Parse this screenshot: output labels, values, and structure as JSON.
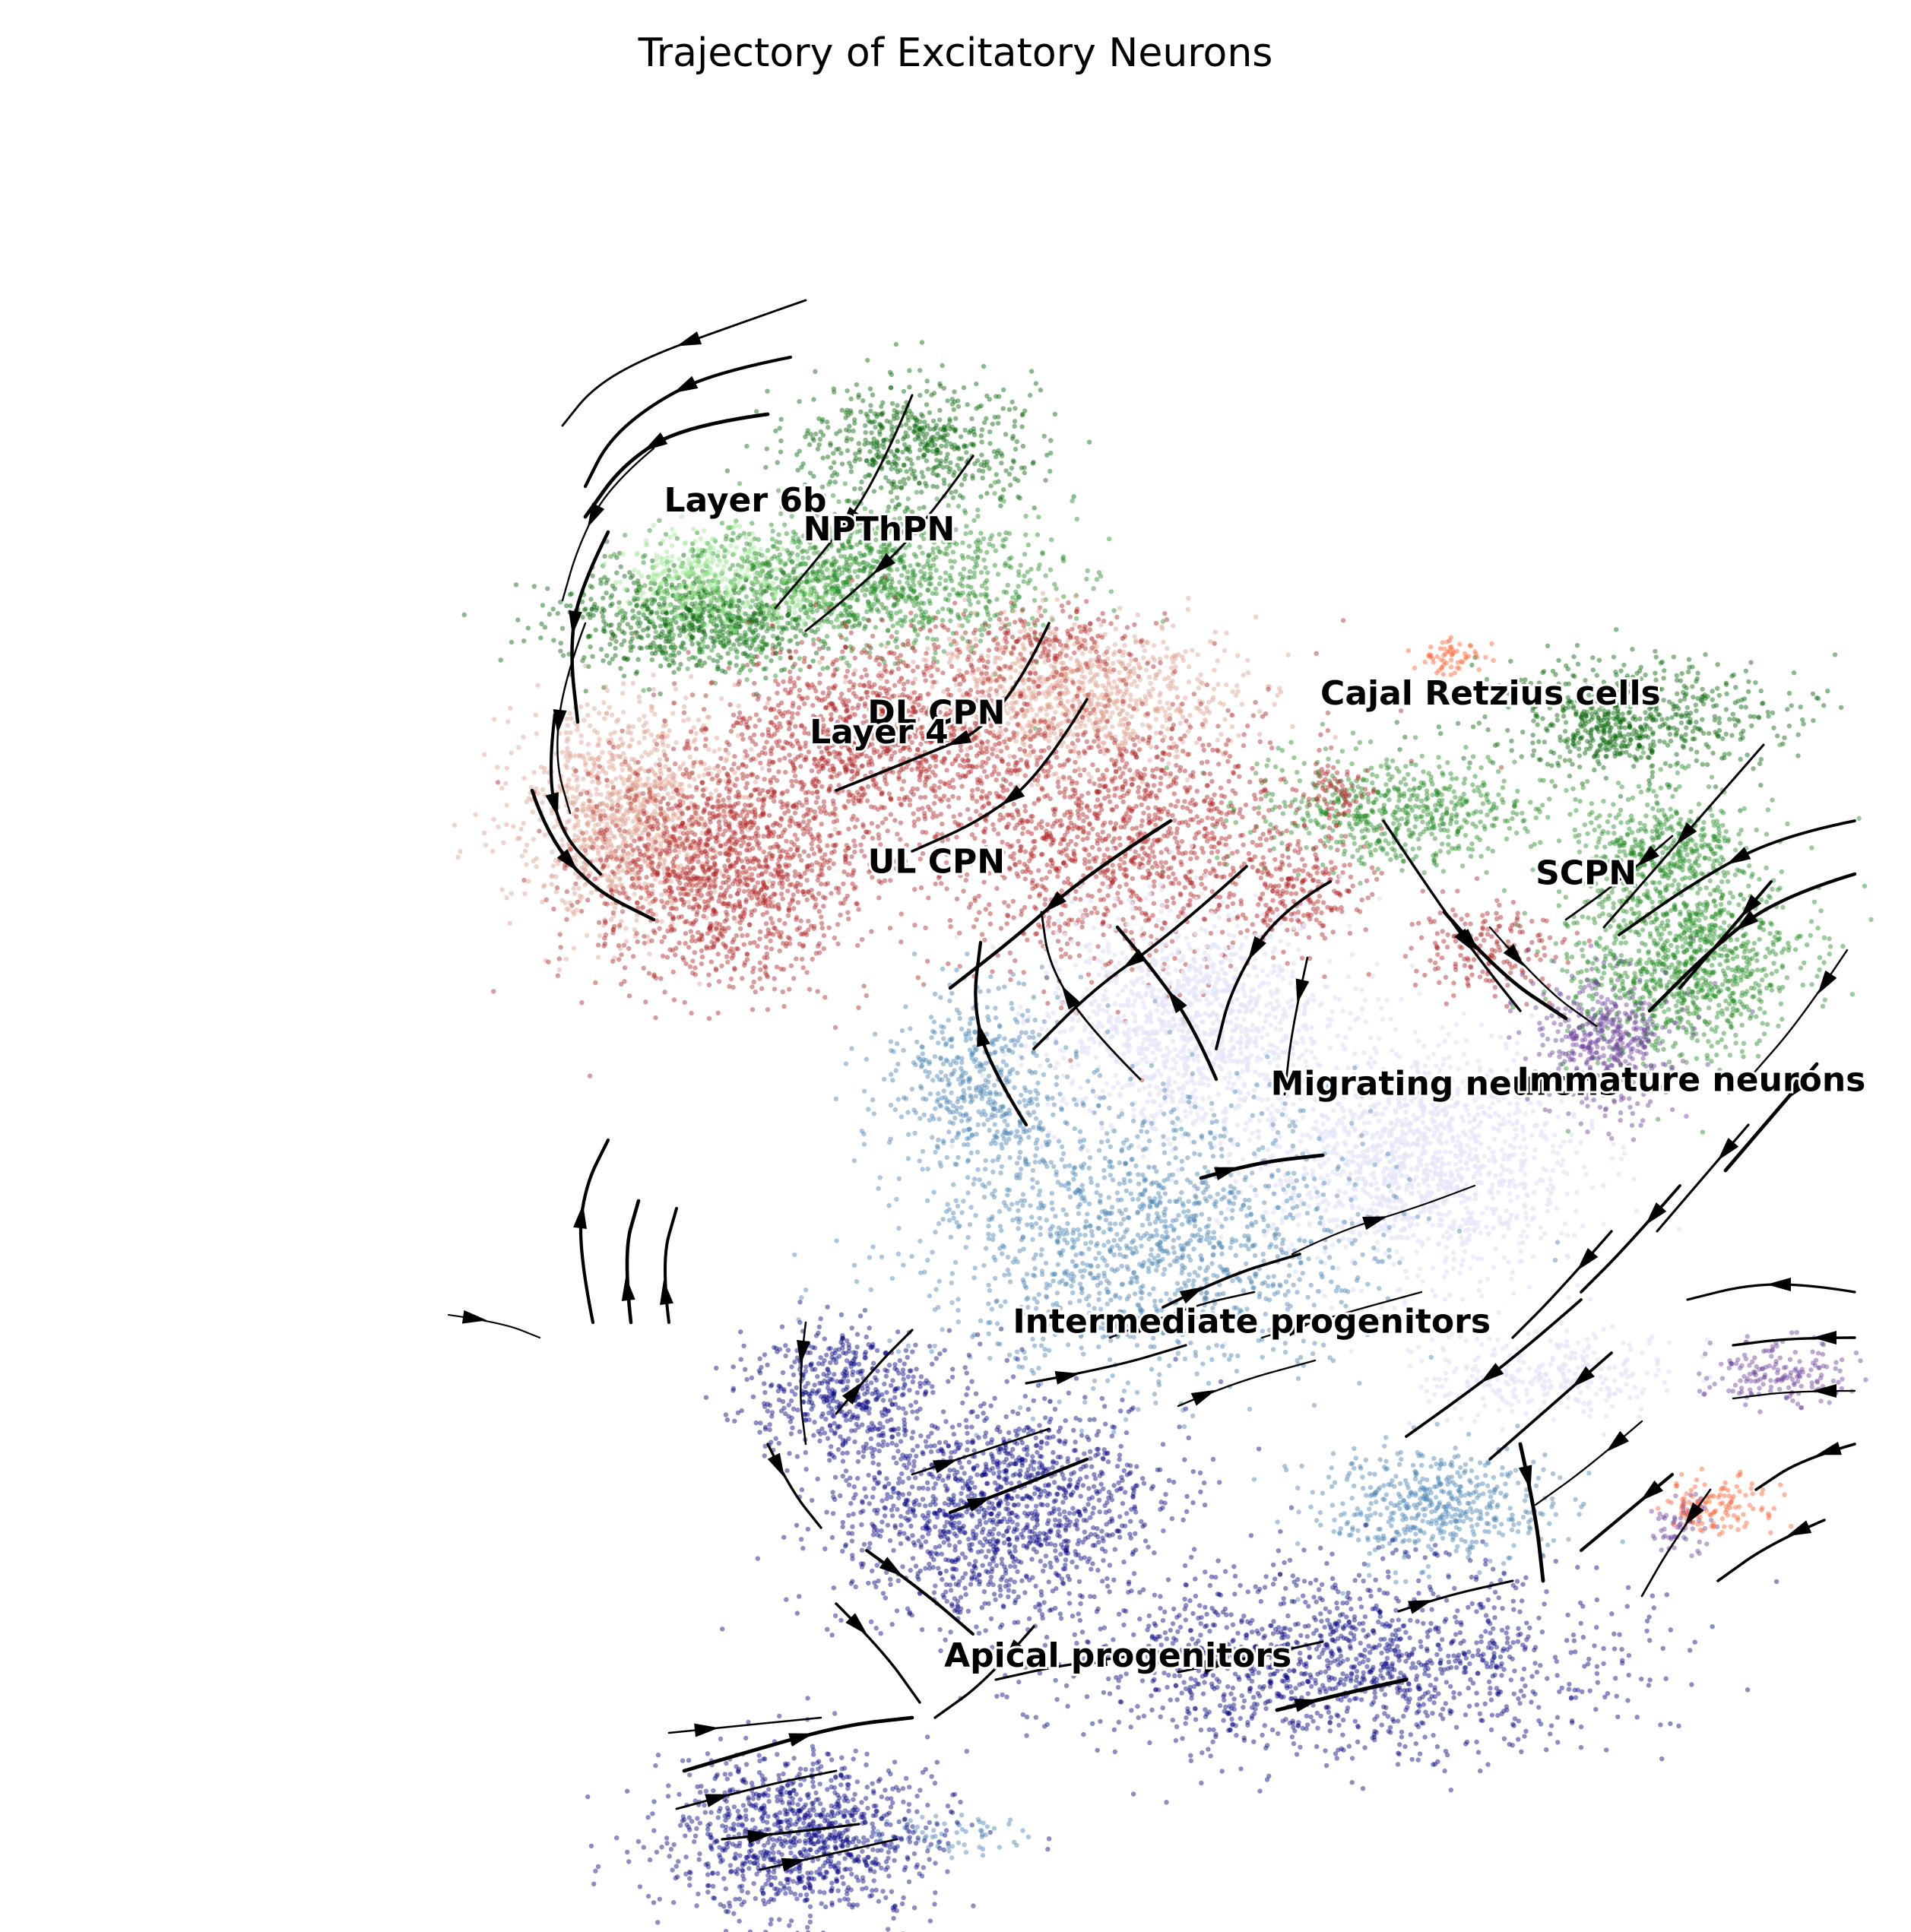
{
  "chart_data": {
    "type": "scatter",
    "title": "Trajectory of Excitatory Neurons",
    "xlabel": "",
    "ylabel": "",
    "axes_visible": false,
    "grid": false,
    "overlay": "velocity streamlines with arrowheads",
    "series": [
      {
        "label": "Layer 6b",
        "color": "#006400",
        "blobs": [
          [
            0.36,
            0.32,
            0.06,
            0.022,
            1.0
          ],
          [
            0.48,
            0.23,
            0.055,
            0.026,
            0.8
          ],
          [
            0.86,
            0.37,
            0.07,
            0.025,
            0.6
          ],
          [
            0.84,
            0.38,
            0.02,
            0.012,
            1.0
          ]
        ]
      },
      {
        "label": "NPThPN",
        "color": "#228B22",
        "blobs": [
          [
            0.45,
            0.3,
            0.08,
            0.03,
            1.0
          ],
          [
            0.38,
            0.33,
            0.03,
            0.015,
            0.5
          ],
          [
            0.73,
            0.42,
            0.06,
            0.025,
            0.8
          ],
          [
            0.88,
            0.5,
            0.05,
            0.04,
            1.0
          ],
          [
            0.87,
            0.44,
            0.04,
            0.03,
            0.8
          ]
        ]
      },
      {
        "label": "Layer 4",
        "color": "#98e68f",
        "blobs": [
          [
            0.37,
            0.3,
            0.035,
            0.02,
            1.0
          ],
          [
            0.42,
            0.31,
            0.02,
            0.012,
            0.5
          ]
        ]
      },
      {
        "label": "DL CPN",
        "color": "#dd9f8c",
        "blobs": [
          [
            0.33,
            0.42,
            0.05,
            0.045,
            1.0
          ],
          [
            0.56,
            0.36,
            0.07,
            0.03,
            0.9
          ]
        ]
      },
      {
        "label": "UL CPN",
        "color": "#b22222",
        "blobs": [
          [
            0.38,
            0.45,
            0.06,
            0.05,
            1.0
          ],
          [
            0.58,
            0.43,
            0.08,
            0.06,
            1.0
          ],
          [
            0.46,
            0.38,
            0.07,
            0.04,
            0.8
          ],
          [
            0.55,
            0.33,
            0.04,
            0.015,
            0.5
          ],
          [
            0.68,
            0.46,
            0.03,
            0.025,
            0.6
          ],
          [
            0.78,
            0.49,
            0.035,
            0.02,
            0.5
          ],
          [
            0.7,
            0.41,
            0.015,
            0.012,
            0.4
          ]
        ]
      },
      {
        "label": "Migrating neurons",
        "color": "#e6e6fa",
        "blobs": [
          [
            0.74,
            0.6,
            0.07,
            0.05,
            1.0
          ],
          [
            0.62,
            0.53,
            0.06,
            0.05,
            0.8
          ],
          [
            0.81,
            0.71,
            0.06,
            0.02,
            0.5
          ]
        ]
      },
      {
        "label": "Immature neurons",
        "color": "#6a3d9a",
        "blobs": [
          [
            0.84,
            0.54,
            0.03,
            0.03,
            1.0
          ],
          [
            0.93,
            0.71,
            0.03,
            0.014,
            0.8
          ],
          [
            0.88,
            0.79,
            0.015,
            0.012,
            0.4
          ]
        ]
      },
      {
        "label": "Cajal Retzius cells",
        "color": "#ff5f2e",
        "blobs": [
          [
            0.76,
            0.34,
            0.015,
            0.008,
            1.0
          ],
          [
            0.9,
            0.78,
            0.025,
            0.012,
            0.8
          ]
        ]
      },
      {
        "label": "Intermediate progenitors",
        "color": "#4682b4",
        "blobs": [
          [
            0.6,
            0.64,
            0.1,
            0.06,
            1.0
          ],
          [
            0.75,
            0.78,
            0.05,
            0.025,
            0.8
          ],
          [
            0.51,
            0.56,
            0.04,
            0.04,
            0.6
          ],
          [
            0.5,
            0.95,
            0.03,
            0.01,
            0.4
          ]
        ]
      },
      {
        "label": "Apical progenitors",
        "color": "#000080",
        "blobs": [
          [
            0.44,
            0.72,
            0.04,
            0.03,
            0.8
          ],
          [
            0.52,
            0.78,
            0.07,
            0.05,
            1.0
          ],
          [
            0.7,
            0.86,
            0.12,
            0.04,
            1.0
          ],
          [
            0.42,
            0.95,
            0.06,
            0.035,
            1.0
          ]
        ]
      }
    ],
    "labels": [
      {
        "text": "Layer 6b",
        "x": 0.39,
        "y": 0.26
      },
      {
        "text": "NPThPN",
        "x": 0.46,
        "y": 0.275
      },
      {
        "text": "DL CPN",
        "x": 0.49,
        "y": 0.37
      },
      {
        "text": "Layer 4",
        "x": 0.46,
        "y": 0.38
      },
      {
        "text": "UL CPN",
        "x": 0.49,
        "y": 0.447
      },
      {
        "text": "Cajal Retzius cells",
        "x": 0.78,
        "y": 0.36
      },
      {
        "text": "SCPN",
        "x": 0.83,
        "y": 0.453
      },
      {
        "text": "Migrating neurons",
        "x": 0.756,
        "y": 0.562
      },
      {
        "text": "Immature neurons",
        "x": 0.885,
        "y": 0.56
      },
      {
        "text": "Intermediate progenitors",
        "x": 0.655,
        "y": 0.685
      },
      {
        "text": "Apical progenitors",
        "x": 0.585,
        "y": 0.858
      }
    ]
  }
}
